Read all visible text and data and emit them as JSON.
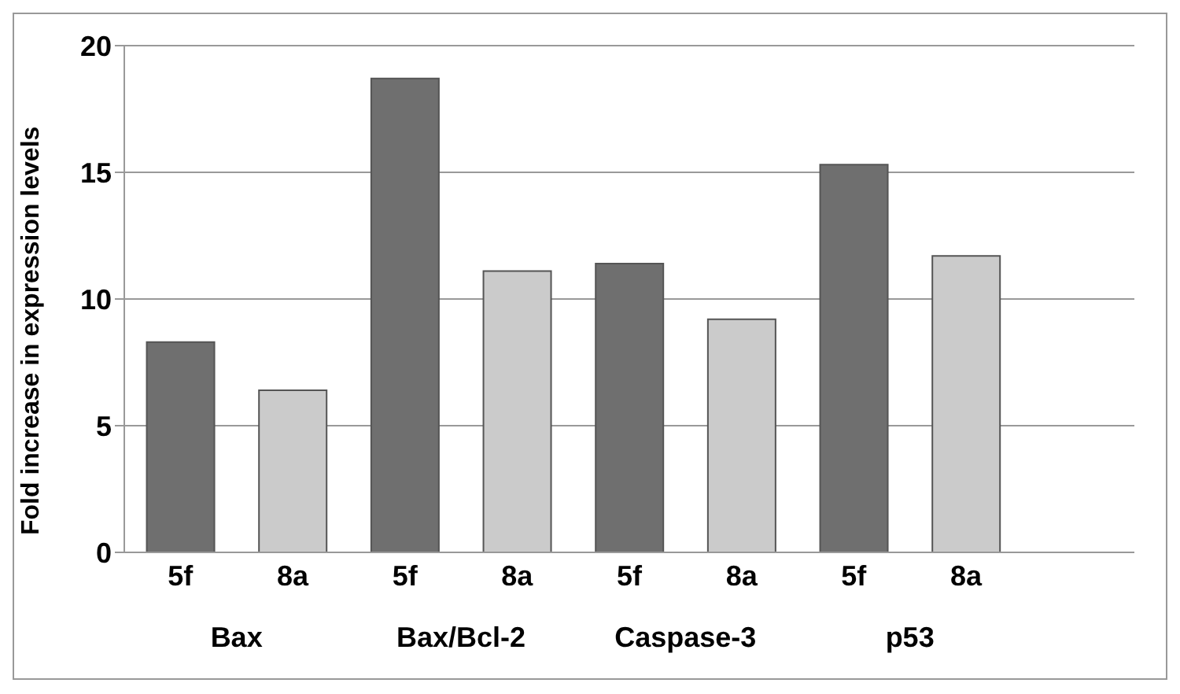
{
  "chart_data": {
    "type": "bar",
    "ylabel": "Fold increase in expression levels",
    "categories": [
      "5f",
      "8a",
      "5f",
      "8a",
      "5f",
      "8a",
      "5f",
      "8a",
      null
    ],
    "values": [
      8.3,
      6.4,
      18.7,
      11.1,
      11.4,
      9.2,
      15.3,
      11.7,
      null
    ],
    "colors": [
      "#6f6f6f",
      "#cbcbcb",
      "#6f6f6f",
      "#cbcbcb",
      "#6f6f6f",
      "#cbcbcb",
      "#6f6f6f",
      "#cbcbcb",
      "#6f6f6f"
    ],
    "ylim": [
      0,
      20
    ],
    "yticks": [
      0,
      5,
      10,
      15,
      20
    ],
    "grid": "y",
    "annotations": [
      "Bax",
      "Bax/Bcl-2",
      "Caspase-3",
      "p53"
    ]
  }
}
